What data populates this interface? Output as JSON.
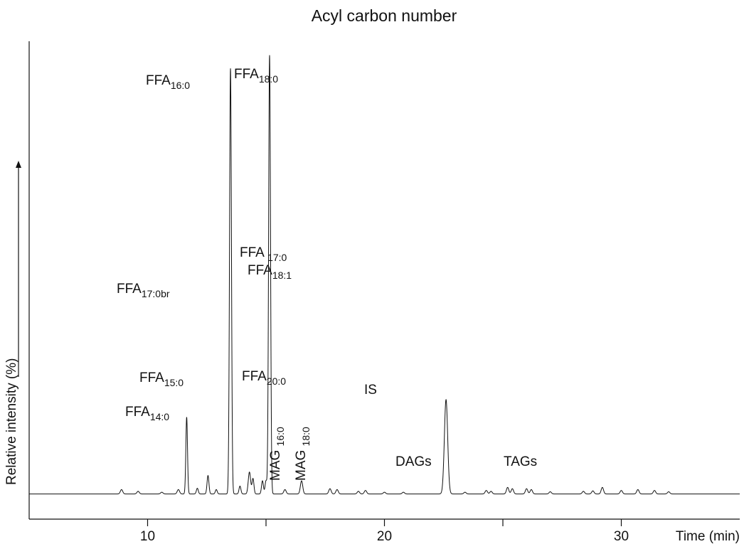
{
  "chart_data": {
    "type": "line",
    "title": "Acyl carbon number",
    "xlabel": "Time (min)",
    "ylabel": "Relative intensity (%)",
    "xlim": [
      5,
      35
    ],
    "ylim": [
      0,
      100
    ],
    "x_ticks": [
      10,
      20,
      30
    ],
    "x_minor_ticks": [
      15,
      25
    ],
    "baseline": 1.2,
    "peaks": [
      {
        "x": 8.9,
        "y": 1.0,
        "w": 0.05
      },
      {
        "x": 9.6,
        "y": 0.6,
        "w": 0.05
      },
      {
        "x": 10.6,
        "y": 0.4,
        "w": 0.05
      },
      {
        "x": 11.3,
        "y": 1.0,
        "w": 0.05
      },
      {
        "x": 11.65,
        "y": 17.5,
        "w": 0.035
      },
      {
        "x": 12.1,
        "y": 1.3,
        "w": 0.04
      },
      {
        "x": 12.55,
        "y": 4.2,
        "w": 0.04
      },
      {
        "x": 12.9,
        "y": 1.0,
        "w": 0.04
      },
      {
        "x": 13.5,
        "y": 97.0,
        "w": 0.04
      },
      {
        "x": 13.9,
        "y": 1.8,
        "w": 0.04
      },
      {
        "x": 14.3,
        "y": 5.0,
        "w": 0.05
      },
      {
        "x": 14.45,
        "y": 3.5,
        "w": 0.04
      },
      {
        "x": 14.85,
        "y": 3.0,
        "w": 0.04
      },
      {
        "x": 15.0,
        "y": 3.0,
        "w": 0.04
      },
      {
        "x": 15.15,
        "y": 100.0,
        "w": 0.04
      },
      {
        "x": 15.8,
        "y": 1.0,
        "w": 0.05
      },
      {
        "x": 16.5,
        "y": 3.0,
        "w": 0.05
      },
      {
        "x": 17.7,
        "y": 1.2,
        "w": 0.05
      },
      {
        "x": 18.0,
        "y": 1.0,
        "w": 0.05
      },
      {
        "x": 18.9,
        "y": 0.6,
        "w": 0.05
      },
      {
        "x": 19.2,
        "y": 0.8,
        "w": 0.05
      },
      {
        "x": 20.0,
        "y": 0.4,
        "w": 0.05
      },
      {
        "x": 20.8,
        "y": 0.4,
        "w": 0.05
      },
      {
        "x": 22.6,
        "y": 21.5,
        "w": 0.07
      },
      {
        "x": 23.4,
        "y": 0.4,
        "w": 0.05
      },
      {
        "x": 24.3,
        "y": 0.8,
        "w": 0.05
      },
      {
        "x": 24.5,
        "y": 0.6,
        "w": 0.05
      },
      {
        "x": 25.2,
        "y": 1.5,
        "w": 0.05
      },
      {
        "x": 25.4,
        "y": 1.2,
        "w": 0.05
      },
      {
        "x": 26.0,
        "y": 1.2,
        "w": 0.05
      },
      {
        "x": 26.2,
        "y": 1.0,
        "w": 0.05
      },
      {
        "x": 27.0,
        "y": 0.5,
        "w": 0.05
      },
      {
        "x": 28.4,
        "y": 0.6,
        "w": 0.05
      },
      {
        "x": 28.8,
        "y": 0.7,
        "w": 0.05
      },
      {
        "x": 29.2,
        "y": 1.5,
        "w": 0.05
      },
      {
        "x": 30.0,
        "y": 0.8,
        "w": 0.05
      },
      {
        "x": 30.7,
        "y": 1.0,
        "w": 0.05
      },
      {
        "x": 31.4,
        "y": 0.8,
        "w": 0.05
      },
      {
        "x": 32.0,
        "y": 0.5,
        "w": 0.05
      }
    ],
    "annotations": [
      {
        "id": "ffa-16-0",
        "base": "FFA",
        "sub": "16:0"
      },
      {
        "id": "ffa-18-0",
        "base": "FFA",
        "sub": "18:0"
      },
      {
        "id": "ffa-17-0",
        "base": "FFA ",
        "sub": "17:0"
      },
      {
        "id": "ffa-18-1",
        "base": "FFA",
        "sub": "18:1"
      },
      {
        "id": "ffa-17-0br",
        "base": "FFA",
        "sub": "17:0br"
      },
      {
        "id": "ffa-15-0",
        "base": "FFA",
        "sub": "15:0"
      },
      {
        "id": "ffa-20-0",
        "base": "FFA",
        "sub": "20:0"
      },
      {
        "id": "ffa-14-0",
        "base": "FFA",
        "sub": "14:0"
      },
      {
        "id": "is",
        "base": "IS",
        "sub": ""
      },
      {
        "id": "mag-16-0",
        "base": "MAG ",
        "sub": "16:0"
      },
      {
        "id": "mag-18-0",
        "base": "MAG ",
        "sub": "18:0"
      },
      {
        "id": "dags",
        "base": "DAGs",
        "sub": ""
      },
      {
        "id": "tags",
        "base": "TAGs",
        "sub": ""
      }
    ]
  }
}
